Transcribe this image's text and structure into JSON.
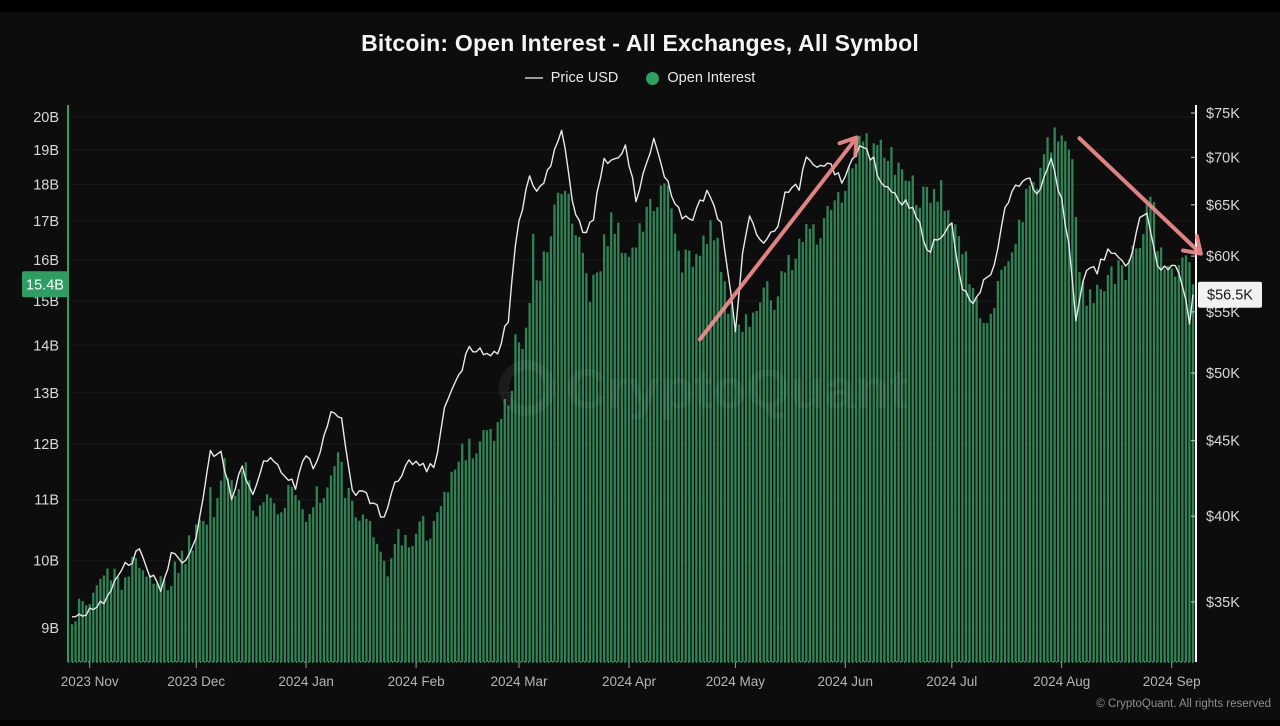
{
  "header": {
    "title": "Bitcoin: Open Interest - All Exchanges, All Symbol"
  },
  "legend": {
    "items": [
      {
        "label": "Price USD",
        "swatch": "line",
        "swatch_color": "#9a9a9a"
      },
      {
        "label": "Open Interest",
        "swatch": "dot",
        "swatch_color": "#2e9e62"
      }
    ]
  },
  "footer": {
    "copyright": "© CryptoQuant. All rights reserved"
  },
  "chart_data": {
    "type": "bar",
    "title": "Bitcoin: Open Interest - All Exchanges, All Symbol",
    "watermark": "CryptoQuant",
    "grid": "horizontal-only",
    "legend_position": "top-center",
    "x_axis": {
      "ticks": [
        {
          "label": "2023 Nov",
          "date": "2023-11-01"
        },
        {
          "label": "2023 Dec",
          "date": "2023-12-01"
        },
        {
          "label": "2024 Jan",
          "date": "2024-01-01"
        },
        {
          "label": "2024 Feb",
          "date": "2024-02-01"
        },
        {
          "label": "2024 Mar",
          "date": "2024-03-01"
        },
        {
          "label": "2024 Apr",
          "date": "2024-04-01"
        },
        {
          "label": "2024 May",
          "date": "2024-05-01"
        },
        {
          "label": "2024 Jun",
          "date": "2024-06-01"
        },
        {
          "label": "2024 Jul",
          "date": "2024-07-01"
        },
        {
          "label": "2024 Aug",
          "date": "2024-08-01"
        },
        {
          "label": "2024 Sep",
          "date": "2024-09-01"
        }
      ]
    },
    "left_axis": {
      "title": "Open Interest",
      "unit": "B",
      "scale": "log",
      "ticks": [
        {
          "label": "20B",
          "value": 20
        },
        {
          "label": "19B",
          "value": 19
        },
        {
          "label": "18B",
          "value": 18
        },
        {
          "label": "17B",
          "value": 17
        },
        {
          "label": "16B",
          "value": 16
        },
        {
          "label": "15B",
          "value": 15
        },
        {
          "label": "14B",
          "value": 14
        },
        {
          "label": "13B",
          "value": 13
        },
        {
          "label": "12B",
          "value": 12
        },
        {
          "label": "11B",
          "value": 11
        },
        {
          "label": "10B",
          "value": 10
        },
        {
          "label": "9B",
          "value": 9
        }
      ]
    },
    "right_axis": {
      "title": "Price USD",
      "unit": "$K",
      "scale": "log",
      "ticks": [
        {
          "label": "$75K",
          "value": 75
        },
        {
          "label": "$70K",
          "value": 70
        },
        {
          "label": "$65K",
          "value": 65
        },
        {
          "label": "$60K",
          "value": 60
        },
        {
          "label": "$55K",
          "value": 55
        },
        {
          "label": "$50K",
          "value": 50
        },
        {
          "label": "$45K",
          "value": 45
        },
        {
          "label": "$40K",
          "value": 40
        },
        {
          "label": "$35K",
          "value": 35
        }
      ]
    },
    "current": {
      "open_interest_label": "15.4B",
      "open_interest_value_b": 15.4,
      "price_label": "$56.5K",
      "price_value_k": 56.5
    },
    "series": [
      {
        "name": "Open Interest",
        "type": "bar",
        "axis": "left",
        "unit": "B",
        "points": [
          [
            "2023-10-27",
            9.2
          ],
          [
            "2023-11-01",
            9.4
          ],
          [
            "2023-11-04",
            9.7
          ],
          [
            "2023-11-08",
            9.9
          ],
          [
            "2023-11-11",
            9.6
          ],
          [
            "2023-11-15",
            10.1
          ],
          [
            "2023-11-18",
            9.8
          ],
          [
            "2023-11-22",
            9.6
          ],
          [
            "2023-11-25",
            9.9
          ],
          [
            "2023-11-28",
            10.1
          ],
          [
            "2023-12-02",
            10.7
          ],
          [
            "2023-12-04",
            10.7
          ],
          [
            "2023-12-05",
            11.5
          ],
          [
            "2023-12-06",
            10.9
          ],
          [
            "2023-12-09",
            11.7
          ],
          [
            "2023-12-12",
            11.1
          ],
          [
            "2023-12-15",
            11.4
          ],
          [
            "2023-12-18",
            10.9
          ],
          [
            "2023-12-21",
            11.3
          ],
          [
            "2023-12-24",
            10.9
          ],
          [
            "2023-12-28",
            11.2
          ],
          [
            "2023-12-31",
            10.8
          ],
          [
            "2024-01-03",
            11.0
          ],
          [
            "2024-01-07",
            11.2
          ],
          [
            "2024-01-10",
            11.7
          ],
          [
            "2024-01-13",
            11.0
          ],
          [
            "2024-01-17",
            10.6
          ],
          [
            "2024-01-20",
            10.3
          ],
          [
            "2024-01-24",
            10.0
          ],
          [
            "2024-01-27",
            10.3
          ],
          [
            "2024-01-31",
            10.4
          ],
          [
            "2024-02-03",
            10.5
          ],
          [
            "2024-02-07",
            10.7
          ],
          [
            "2024-02-10",
            11.2
          ],
          [
            "2024-02-14",
            11.9
          ],
          [
            "2024-02-17",
            12.0
          ],
          [
            "2024-02-21",
            12.2
          ],
          [
            "2024-02-24",
            12.3
          ],
          [
            "2024-02-28",
            13.1
          ],
          [
            "2024-02-29",
            14.3
          ],
          [
            "2024-03-01",
            13.8
          ],
          [
            "2024-03-04",
            15.0
          ],
          [
            "2024-03-05",
            16.5
          ],
          [
            "2024-03-06",
            15.2
          ],
          [
            "2024-03-09",
            16.3
          ],
          [
            "2024-03-12",
            17.5
          ],
          [
            "2024-03-14",
            18.2
          ],
          [
            "2024-03-17",
            16.8
          ],
          [
            "2024-03-21",
            15.3
          ],
          [
            "2024-03-24",
            16.1
          ],
          [
            "2024-03-27",
            17.0
          ],
          [
            "2024-03-30",
            16.5
          ],
          [
            "2024-04-02",
            16.2
          ],
          [
            "2024-04-05",
            16.9
          ],
          [
            "2024-04-09",
            17.7
          ],
          [
            "2024-04-12",
            17.8
          ],
          [
            "2024-04-15",
            16.1
          ],
          [
            "2024-04-18",
            15.9
          ],
          [
            "2024-04-21",
            16.5
          ],
          [
            "2024-04-24",
            16.9
          ],
          [
            "2024-04-27",
            15.8
          ],
          [
            "2024-04-30",
            14.7
          ],
          [
            "2024-05-03",
            14.4
          ],
          [
            "2024-05-06",
            14.9
          ],
          [
            "2024-05-09",
            15.2
          ],
          [
            "2024-05-12",
            15.0
          ],
          [
            "2024-05-15",
            15.7
          ],
          [
            "2024-05-18",
            16.1
          ],
          [
            "2024-05-21",
            16.9
          ],
          [
            "2024-05-24",
            16.5
          ],
          [
            "2024-05-27",
            17.0
          ],
          [
            "2024-05-30",
            17.5
          ],
          [
            "2024-06-02",
            18.2
          ],
          [
            "2024-06-05",
            19.0
          ],
          [
            "2024-06-07",
            19.3
          ],
          [
            "2024-06-10",
            19.0
          ],
          [
            "2024-06-13",
            18.8
          ],
          [
            "2024-06-16",
            18.4
          ],
          [
            "2024-06-19",
            18.1
          ],
          [
            "2024-06-22",
            17.7
          ],
          [
            "2024-06-25",
            17.4
          ],
          [
            "2024-06-28",
            17.7
          ],
          [
            "2024-07-01",
            17.3
          ],
          [
            "2024-07-04",
            16.2
          ],
          [
            "2024-07-07",
            15.1
          ],
          [
            "2024-07-10",
            14.6
          ],
          [
            "2024-07-13",
            15.2
          ],
          [
            "2024-07-16",
            15.9
          ],
          [
            "2024-07-19",
            16.6
          ],
          [
            "2024-07-22",
            17.6
          ],
          [
            "2024-07-25",
            18.3
          ],
          [
            "2024-07-28",
            19.0
          ],
          [
            "2024-07-31",
            19.3
          ],
          [
            "2024-08-02",
            19.6
          ],
          [
            "2024-08-04",
            18.4
          ],
          [
            "2024-08-06",
            15.9
          ],
          [
            "2024-08-08",
            14.9
          ],
          [
            "2024-08-11",
            15.3
          ],
          [
            "2024-08-14",
            15.6
          ],
          [
            "2024-08-17",
            15.6
          ],
          [
            "2024-08-20",
            15.9
          ],
          [
            "2024-08-23",
            16.6
          ],
          [
            "2024-08-26",
            17.9
          ],
          [
            "2024-08-28",
            16.6
          ],
          [
            "2024-08-31",
            15.9
          ],
          [
            "2024-09-03",
            15.6
          ],
          [
            "2024-09-05",
            15.9
          ],
          [
            "2024-09-07",
            15.4
          ]
        ]
      },
      {
        "name": "Price USD",
        "type": "line",
        "axis": "right",
        "unit": "$K",
        "points": [
          [
            "2023-10-27",
            34.2
          ],
          [
            "2023-11-01",
            34.5
          ],
          [
            "2023-11-05",
            35.0
          ],
          [
            "2023-11-09",
            36.7
          ],
          [
            "2023-11-12",
            37.1
          ],
          [
            "2023-11-15",
            37.9
          ],
          [
            "2023-11-18",
            36.5
          ],
          [
            "2023-11-21",
            35.8
          ],
          [
            "2023-11-24",
            37.7
          ],
          [
            "2023-11-28",
            37.2
          ],
          [
            "2023-12-01",
            38.7
          ],
          [
            "2023-12-05",
            44.1
          ],
          [
            "2023-12-08",
            44.2
          ],
          [
            "2023-12-11",
            41.3
          ],
          [
            "2023-12-14",
            43.0
          ],
          [
            "2023-12-17",
            41.4
          ],
          [
            "2023-12-20",
            43.7
          ],
          [
            "2023-12-23",
            43.7
          ],
          [
            "2023-12-26",
            42.5
          ],
          [
            "2023-12-29",
            42.0
          ],
          [
            "2024-01-01",
            44.2
          ],
          [
            "2024-01-03",
            42.8
          ],
          [
            "2024-01-08",
            47.0
          ],
          [
            "2024-01-11",
            46.4
          ],
          [
            "2024-01-14",
            41.7
          ],
          [
            "2024-01-18",
            41.3
          ],
          [
            "2024-01-23",
            39.9
          ],
          [
            "2024-01-26",
            42.0
          ],
          [
            "2024-01-30",
            43.5
          ],
          [
            "2024-02-02",
            43.2
          ],
          [
            "2024-02-06",
            43.1
          ],
          [
            "2024-02-09",
            47.1
          ],
          [
            "2024-02-13",
            49.7
          ],
          [
            "2024-02-16",
            52.0
          ],
          [
            "2024-02-20",
            51.8
          ],
          [
            "2024-02-24",
            51.6
          ],
          [
            "2024-02-27",
            54.5
          ],
          [
            "2024-02-29",
            61.4
          ],
          [
            "2024-03-04",
            68.3
          ],
          [
            "2024-03-06",
            66.1
          ],
          [
            "2024-03-09",
            68.3
          ],
          [
            "2024-03-13",
            73.1
          ],
          [
            "2024-03-16",
            65.3
          ],
          [
            "2024-03-19",
            61.9
          ],
          [
            "2024-03-22",
            63.8
          ],
          [
            "2024-03-25",
            69.9
          ],
          [
            "2024-03-27",
            69.5
          ],
          [
            "2024-03-31",
            71.3
          ],
          [
            "2024-04-03",
            65.5
          ],
          [
            "2024-04-08",
            71.6
          ],
          [
            "2024-04-12",
            67.1
          ],
          [
            "2024-04-16",
            63.8
          ],
          [
            "2024-04-19",
            63.8
          ],
          [
            "2024-04-23",
            66.4
          ],
          [
            "2024-04-27",
            63.1
          ],
          [
            "2024-05-01",
            53.5
          ],
          [
            "2024-05-03",
            60.0
          ],
          [
            "2024-05-05",
            63.5
          ],
          [
            "2024-05-09",
            61.3
          ],
          [
            "2024-05-13",
            62.9
          ],
          [
            "2024-05-15",
            66.2
          ],
          [
            "2024-05-19",
            66.9
          ],
          [
            "2024-05-21",
            70.2
          ],
          [
            "2024-05-24",
            68.5
          ],
          [
            "2024-05-27",
            69.4
          ],
          [
            "2024-05-31",
            67.5
          ],
          [
            "2024-06-04",
            70.5
          ],
          [
            "2024-06-06",
            71.1
          ],
          [
            "2024-06-09",
            69.6
          ],
          [
            "2024-06-11",
            67.3
          ],
          [
            "2024-06-14",
            66.0
          ],
          [
            "2024-06-18",
            65.2
          ],
          [
            "2024-06-21",
            64.1
          ],
          [
            "2024-06-24",
            60.3
          ],
          [
            "2024-06-27",
            61.7
          ],
          [
            "2024-07-01",
            62.8
          ],
          [
            "2024-07-04",
            57.0
          ],
          [
            "2024-07-07",
            55.9
          ],
          [
            "2024-07-10",
            57.7
          ],
          [
            "2024-07-13",
            59.2
          ],
          [
            "2024-07-16",
            64.8
          ],
          [
            "2024-07-19",
            66.7
          ],
          [
            "2024-07-22",
            68.1
          ],
          [
            "2024-07-25",
            65.8
          ],
          [
            "2024-07-29",
            69.9
          ],
          [
            "2024-08-01",
            65.3
          ],
          [
            "2024-08-03",
            61.4
          ],
          [
            "2024-08-05",
            54.0
          ],
          [
            "2024-08-08",
            59.0
          ],
          [
            "2024-08-11",
            58.7
          ],
          [
            "2024-08-14",
            60.6
          ],
          [
            "2024-08-17",
            59.5
          ],
          [
            "2024-08-20",
            59.3
          ],
          [
            "2024-08-23",
            64.1
          ],
          [
            "2024-08-25",
            64.3
          ],
          [
            "2024-08-28",
            59.0
          ],
          [
            "2024-08-31",
            58.9
          ],
          [
            "2024-09-02",
            59.1
          ],
          [
            "2024-09-04",
            57.5
          ],
          [
            "2024-09-06",
            54.2
          ],
          [
            "2024-09-07",
            56.5
          ]
        ]
      }
    ],
    "annotations": {
      "arrows": [
        {
          "name": "uptrend-arrow",
          "from": {
            "date": "2024-04-21",
            "price_k": 52.7
          },
          "to": {
            "date": "2024-06-04",
            "price_k": 72.1
          }
        },
        {
          "name": "downtrend-arrow",
          "from": {
            "date": "2024-08-06",
            "price_k": 72.1
          },
          "to": {
            "date": "2024-09-09",
            "price_k": 60.3
          }
        }
      ]
    },
    "colors": {
      "background": "#0d0d0e",
      "bars": "#2f8355",
      "price_line": "#e8e8e8",
      "axis_green": "#2e9e62",
      "axis_right": "#ffffff",
      "badge_green": "#2e9e62",
      "badge_white": "#f2f2f2",
      "arrow": "#f28c8c",
      "gridline": "rgba(255,255,255,0.06)",
      "tick_label": "#d8d8d8",
      "month_label": "#b5b5b5"
    }
  }
}
